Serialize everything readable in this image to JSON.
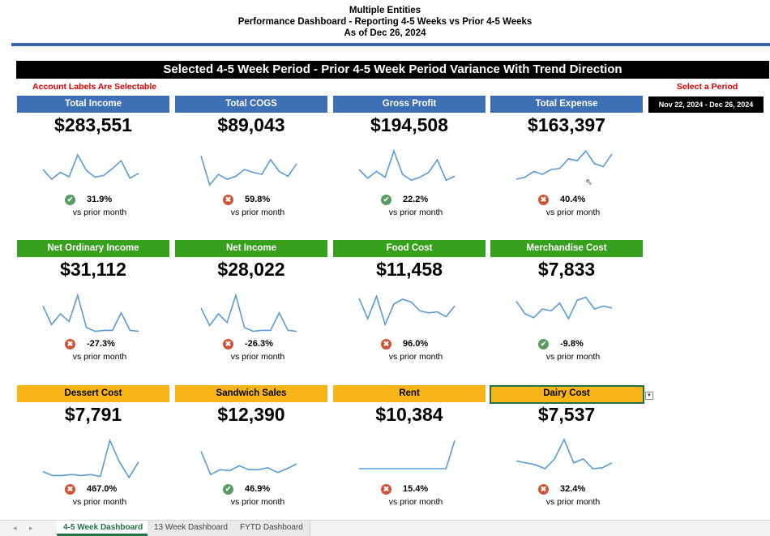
{
  "header": {
    "line1": "Multiple Entities",
    "line2": "Performance Dashboard - Reporting 4-5 Weeks vs Prior 4-5 Weeks",
    "line3": "As of Dec 26, 2024"
  },
  "banner": "Selected 4-5 Week Period - Prior 4-5 Week Period Variance With Trend Direction",
  "account_note": "Account Labels Are Selectable",
  "period": {
    "label": "Select a Period",
    "value": "Nov 22, 2024 - Dec 26, 2024"
  },
  "colors": {
    "blue": "#3d6fb5",
    "green": "#37a01d",
    "gold": "#f6b416",
    "spark": "#5b9bd5",
    "ok": "#5a9a64",
    "bad": "#cf5337"
  },
  "cards": [
    {
      "label": "Total Income",
      "value": "$283,551",
      "status": "ok",
      "change": "31.9%",
      "note": "vs prior month",
      "trend": [
        40,
        20,
        34,
        25,
        70,
        38,
        24,
        28,
        42,
        58,
        22,
        32
      ]
    },
    {
      "label": "Total COGS",
      "value": "$89,043",
      "status": "bad",
      "change": "59.8%",
      "note": "vs prior month",
      "trend": [
        68,
        8,
        30,
        20,
        26,
        40,
        34,
        30,
        60,
        36,
        26,
        52
      ]
    },
    {
      "label": "Gross Profit",
      "value": "$194,508",
      "status": "ok",
      "change": "22.2%",
      "note": "vs prior month",
      "trend": [
        40,
        22,
        36,
        24,
        78,
        30,
        18,
        24,
        34,
        60,
        18,
        26
      ]
    },
    {
      "label": "Total Expense",
      "value": "$163,397",
      "status": "bad",
      "change": "40.4%",
      "note": "vs prior month",
      "trend": [
        20,
        24,
        36,
        30,
        40,
        42,
        62,
        58,
        78,
        52,
        46,
        72
      ]
    },
    {
      "label": "Net Ordinary Income",
      "value": "$31,112",
      "status": "bad",
      "change": "-27.3%",
      "note": "vs prior month",
      "trend": [
        56,
        18,
        40,
        24,
        78,
        12,
        4,
        6,
        6,
        42,
        6,
        4
      ]
    },
    {
      "label": "Net Income",
      "value": "$28,022",
      "status": "bad",
      "change": "-26.3%",
      "note": "vs prior month",
      "trend": [
        52,
        16,
        40,
        22,
        78,
        12,
        4,
        6,
        6,
        42,
        6,
        4
      ]
    },
    {
      "label": "Food Cost",
      "value": "$11,458",
      "status": "bad",
      "change": "96.0%",
      "note": "vs prior month",
      "trend": [
        72,
        30,
        76,
        18,
        60,
        70,
        64,
        46,
        42,
        44,
        34,
        56
      ]
    },
    {
      "label": "Merchandise Cost",
      "value": "$7,833",
      "status": "ok",
      "change": "-9.8%",
      "note": "vs prior month",
      "trend": [
        66,
        40,
        32,
        50,
        46,
        62,
        30,
        68,
        74,
        50,
        56,
        52
      ]
    },
    {
      "label": "Dessert Cost",
      "value": "$7,791",
      "status": "bad",
      "change": "467.0%",
      "note": "vs prior month",
      "trend": [
        14,
        6,
        6,
        8,
        6,
        8,
        4,
        78,
        34,
        2,
        34
      ]
    },
    {
      "label": "Sandwich Sales",
      "value": "$12,390",
      "status": "ok",
      "change": "46.9%",
      "note": "vs prior month",
      "trend": [
        56,
        8,
        18,
        16,
        26,
        18,
        18,
        22,
        12,
        20,
        30
      ]
    },
    {
      "label": "Rent",
      "value": "$10,384",
      "status": "bad",
      "change": "15.4%",
      "note": "vs prior month",
      "trend": [
        20,
        20,
        20,
        20,
        20,
        20,
        20,
        20,
        20,
        20,
        20,
        78
      ]
    },
    {
      "label": "Dairy Cost",
      "value": "$7,537",
      "status": "bad",
      "change": "32.4%",
      "note": "vs prior month",
      "trend": [
        36,
        32,
        28,
        20,
        40,
        80,
        32,
        40,
        20,
        22,
        32
      ]
    }
  ],
  "tabs": [
    "4-5 Week Dashboard",
    "13 Week Dashboard",
    "FYTD Dashboard"
  ]
}
